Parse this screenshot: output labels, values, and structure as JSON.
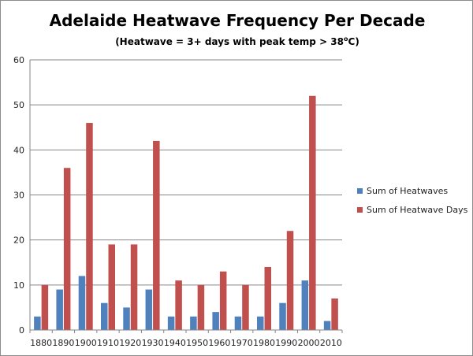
{
  "chart_data": {
    "type": "bar",
    "title": "Adelaide Heatwave Frequency Per Decade",
    "subtitle_prefix": "(Heatwave = 3+ days with peak temp > 38",
    "subtitle_degree": "o",
    "subtitle_suffix": "C)",
    "xlabel": "",
    "ylabel": "",
    "ylim": [
      0,
      60
    ],
    "yticks": [
      "0",
      "10",
      "20",
      "30",
      "40",
      "50",
      "60"
    ],
    "grid": true,
    "legend_position": "right",
    "categories": [
      "1880",
      "1890",
      "1900",
      "1910",
      "1920",
      "1930",
      "1940",
      "1950",
      "1960",
      "1970",
      "1980",
      "1990",
      "2000",
      "2010"
    ],
    "series": [
      {
        "name": "Sum of Heatwaves",
        "color": "#4f81bd",
        "values": [
          3,
          9,
          12,
          6,
          5,
          9,
          3,
          3,
          4,
          3,
          3,
          6,
          11,
          2
        ]
      },
      {
        "name": "Sum of Heatwave Days",
        "color": "#c0504d",
        "values": [
          10,
          36,
          46,
          19,
          19,
          42,
          11,
          10,
          13,
          10,
          14,
          22,
          52,
          7
        ]
      }
    ]
  }
}
